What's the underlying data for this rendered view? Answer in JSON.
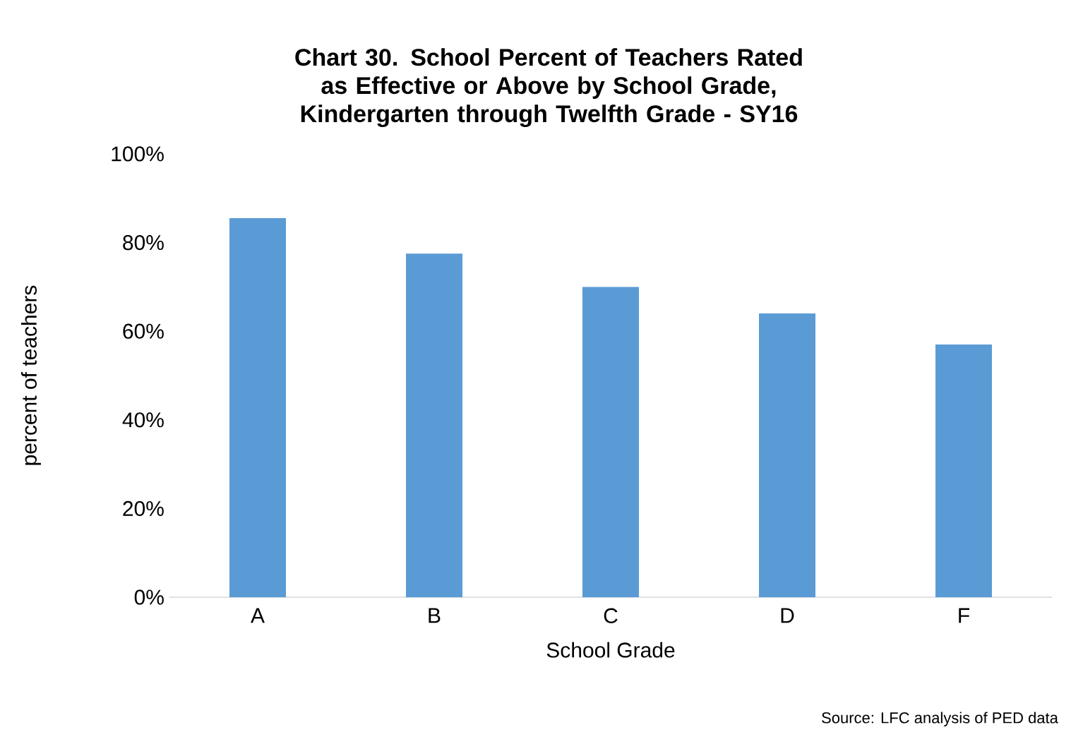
{
  "chart_data": {
    "type": "bar",
    "title": "Chart 30. School Percent of Teachers Rated as Effective or Above by School Grade, Kindergarten through Twelfth Grade - SY16",
    "xlabel": "School Grade",
    "ylabel": "percent of teachers",
    "categories": [
      "A",
      "B",
      "C",
      "D",
      "F"
    ],
    "values": [
      85.5,
      77.5,
      70,
      64,
      57
    ],
    "color": "#5b9bd5",
    "ylim": [
      0,
      100
    ],
    "yticks": [
      {
        "value": 0,
        "label": "0%"
      },
      {
        "value": 20,
        "label": "20%"
      },
      {
        "value": 40,
        "label": "40%"
      },
      {
        "value": 60,
        "label": "60%"
      },
      {
        "value": 80,
        "label": "80%"
      },
      {
        "value": 100,
        "label": "100%"
      }
    ],
    "grid": false,
    "annotations": [
      "Source: LFC analysis of PED data"
    ]
  }
}
